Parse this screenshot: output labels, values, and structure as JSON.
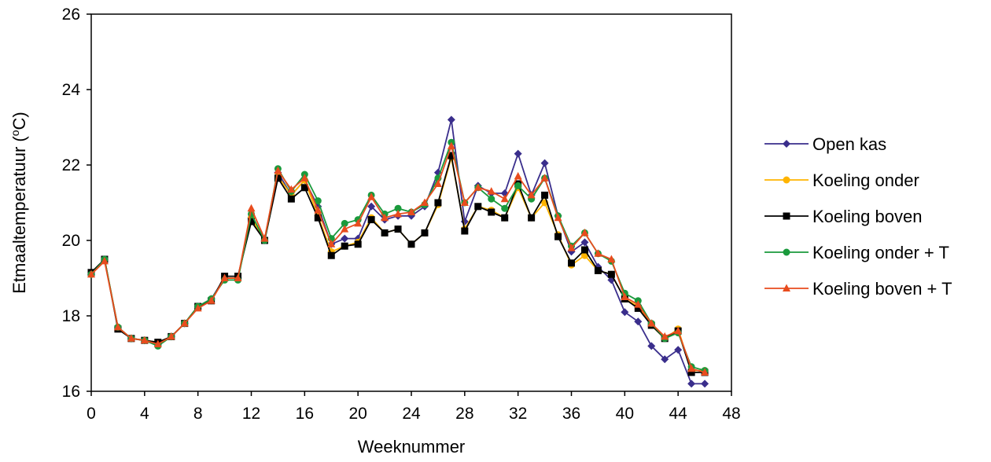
{
  "chart_data": {
    "type": "line",
    "xlabel": "Weeknummer",
    "ylabel": "Etmaaltemperatuur  (",
    "ylabel_sup": "o",
    "ylabel_end": "C)",
    "xlim": [
      0,
      48
    ],
    "ylim": [
      16,
      26
    ],
    "xticks": [
      0,
      4,
      8,
      12,
      16,
      20,
      24,
      28,
      32,
      36,
      40,
      44,
      48
    ],
    "yticks": [
      16,
      18,
      20,
      22,
      24,
      26
    ],
    "grid": false,
    "legend_position": "right",
    "x": [
      0,
      1,
      2,
      3,
      4,
      5,
      6,
      7,
      8,
      9,
      10,
      11,
      12,
      13,
      14,
      15,
      16,
      17,
      18,
      19,
      20,
      21,
      22,
      23,
      24,
      25,
      26,
      27,
      28,
      29,
      30,
      31,
      32,
      33,
      34,
      35,
      36,
      37,
      38,
      39,
      40,
      41,
      42,
      43,
      44,
      45,
      46
    ],
    "series": [
      {
        "name": "Open kas",
        "color": "#3a2e8c",
        "marker": "diamond",
        "values": [
          19.1,
          19.5,
          17.7,
          17.4,
          17.35,
          17.25,
          17.45,
          17.8,
          18.25,
          18.45,
          19.0,
          19.0,
          20.6,
          20.0,
          21.8,
          21.2,
          21.6,
          20.9,
          19.9,
          20.05,
          20.05,
          20.9,
          20.55,
          20.65,
          20.65,
          20.9,
          21.8,
          23.2,
          20.5,
          21.45,
          21.25,
          21.25,
          22.3,
          21.2,
          22.05,
          20.65,
          19.7,
          19.95,
          19.3,
          18.95,
          18.1,
          17.85,
          17.2,
          16.85,
          17.1,
          16.2,
          16.2
        ]
      },
      {
        "name": "Koeling onder",
        "color": "#ffb400",
        "marker": "circle",
        "values": [
          19.1,
          19.5,
          17.7,
          17.4,
          17.35,
          17.3,
          17.45,
          17.8,
          18.25,
          18.4,
          19.0,
          19.0,
          20.6,
          20.0,
          21.7,
          21.2,
          21.6,
          20.65,
          19.7,
          19.85,
          19.95,
          20.6,
          20.2,
          20.3,
          19.9,
          20.2,
          20.95,
          22.2,
          20.3,
          20.9,
          20.8,
          20.6,
          21.4,
          20.6,
          21.0,
          20.15,
          19.35,
          19.6,
          19.2,
          19.1,
          18.45,
          18.25,
          17.75,
          17.4,
          17.65,
          16.55,
          16.55
        ]
      },
      {
        "name": "Koeling boven",
        "color": "#000000",
        "marker": "square",
        "values": [
          19.15,
          19.5,
          17.65,
          17.4,
          17.35,
          17.3,
          17.45,
          17.8,
          18.25,
          18.4,
          19.05,
          19.05,
          20.5,
          20.0,
          21.65,
          21.1,
          21.4,
          20.6,
          19.6,
          19.85,
          19.9,
          20.55,
          20.2,
          20.3,
          19.9,
          20.2,
          21.0,
          22.25,
          20.25,
          20.9,
          20.75,
          20.6,
          21.5,
          20.6,
          21.2,
          20.1,
          19.4,
          19.75,
          19.2,
          19.1,
          18.45,
          18.2,
          17.75,
          17.4,
          17.6,
          16.5,
          16.5
        ]
      },
      {
        "name": "Koeling onder + T",
        "color": "#1a9a3c",
        "marker": "circle",
        "values": [
          19.1,
          19.5,
          17.7,
          17.4,
          17.35,
          17.2,
          17.45,
          17.8,
          18.25,
          18.45,
          18.95,
          18.95,
          20.7,
          20.0,
          21.9,
          21.3,
          21.75,
          21.05,
          20.05,
          20.45,
          20.55,
          21.2,
          20.7,
          20.85,
          20.75,
          20.95,
          21.65,
          22.6,
          21.0,
          21.4,
          21.1,
          20.85,
          21.45,
          21.1,
          21.65,
          20.65,
          19.85,
          20.2,
          19.65,
          19.45,
          18.6,
          18.4,
          17.8,
          17.4,
          17.55,
          16.65,
          16.55
        ]
      },
      {
        "name": "Koeling boven + T",
        "color": "#e84c1e",
        "marker": "triangle",
        "values": [
          19.1,
          19.45,
          17.7,
          17.4,
          17.35,
          17.25,
          17.45,
          17.8,
          18.2,
          18.4,
          19.0,
          19.0,
          20.85,
          20.05,
          21.85,
          21.35,
          21.65,
          20.8,
          19.9,
          20.3,
          20.45,
          21.15,
          20.6,
          20.7,
          20.75,
          21.0,
          21.5,
          22.5,
          21.0,
          21.4,
          21.3,
          21.1,
          21.7,
          21.2,
          21.65,
          20.6,
          19.8,
          20.2,
          19.65,
          19.5,
          18.5,
          18.3,
          17.8,
          17.45,
          17.6,
          16.6,
          16.5
        ]
      }
    ]
  }
}
